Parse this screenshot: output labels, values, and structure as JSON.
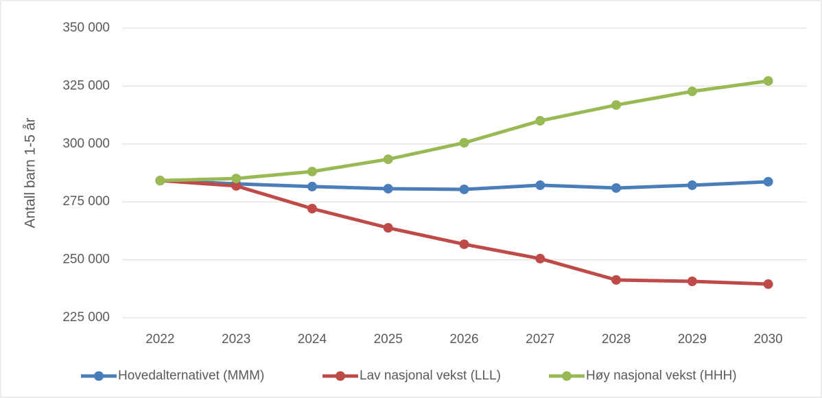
{
  "chart_data": {
    "type": "line",
    "y_label": "Antall barn 1-5 år",
    "categories": [
      "2022",
      "2023",
      "2024",
      "2025",
      "2026",
      "2027",
      "2028",
      "2029",
      "2030"
    ],
    "series": [
      {
        "name": "Hovedalternativet (MMM)",
        "color": "#4a7ebb",
        "values": [
          284200,
          282800,
          281600,
          280700,
          280400,
          282200,
          281000,
          282200,
          283700
        ]
      },
      {
        "name": "Lav nasjonal vekst (LLL)",
        "color": "#be4b48",
        "values": [
          284200,
          281900,
          272100,
          263800,
          256700,
          250500,
          241300,
          240700,
          239500
        ]
      },
      {
        "name": "Høy nasjonal vekst (HHH)",
        "color": "#98b954",
        "values": [
          284200,
          285100,
          288100,
          293400,
          300500,
          310000,
          316800,
          322700,
          327200
        ]
      }
    ],
    "ylim": [
      225000,
      350000
    ],
    "yticks": [
      {
        "value": 225000,
        "label": "225 000"
      },
      {
        "value": 250000,
        "label": "250 000"
      },
      {
        "value": 275000,
        "label": "275 000"
      },
      {
        "value": 300000,
        "label": "300 000"
      },
      {
        "value": 325000,
        "label": "325 000"
      },
      {
        "value": 350000,
        "label": "350 000"
      }
    ],
    "grid": true,
    "legend": "bottom"
  }
}
